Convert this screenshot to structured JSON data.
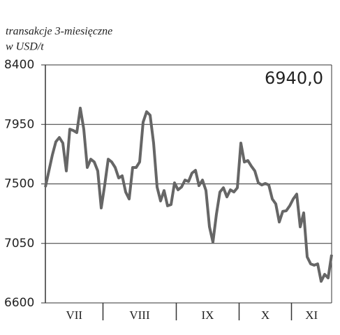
{
  "chart_data": {
    "type": "line",
    "subtitle": [
      "transakcje 3-miesięczne",
      "w USD/t"
    ],
    "annotation": "6940,0",
    "color": "#666666",
    "ylim": [
      6600,
      8400
    ],
    "yticks": [
      6600,
      7050,
      7500,
      7950,
      8400
    ],
    "grid": true,
    "months": [
      {
        "label": "VII",
        "values": [
          7476,
          7598,
          7719,
          7819,
          7851,
          7809,
          7598,
          7914,
          7904,
          7888,
          8073,
          7914,
          7624,
          7687,
          7666,
          7598,
          7318
        ]
      },
      {
        "label": "VIII",
        "values": [
          7492,
          7687,
          7666,
          7624,
          7545,
          7561,
          7439,
          7386,
          7624,
          7624,
          7666,
          7967,
          8046,
          8020,
          7809,
          7476,
          7371,
          7450,
          7334,
          7344,
          7508
        ]
      },
      {
        "label": "IX",
        "values": [
          7455,
          7476,
          7529,
          7518,
          7582,
          7603,
          7487,
          7529,
          7450,
          7176,
          7060,
          7271,
          7439,
          7471,
          7402,
          7455,
          7439,
          7471
        ]
      },
      {
        "label": "X",
        "values": [
          7809,
          7666,
          7677,
          7634,
          7598,
          7508,
          7492,
          7503,
          7492,
          7386,
          7349,
          7212,
          7292,
          7297,
          7334
        ]
      },
      {
        "label": "XI",
        "values": [
          7386,
          7423,
          7175,
          7281,
          6948,
          6895,
          6885,
          6895,
          6763,
          6816,
          6789,
          6964
        ]
      }
    ]
  }
}
